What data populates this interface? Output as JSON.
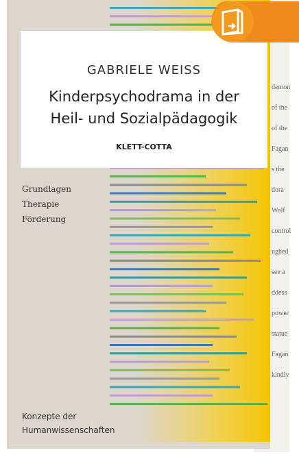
{
  "cover": {
    "author": "GABRIELE WEISS",
    "title_lines": [
      "Kinderpsychodrama in der",
      "Heil- und Sozialpädagogik"
    ],
    "publisher": "KLETT-COTTA",
    "topics": [
      "Grundlagen",
      "Therapie",
      "Förderung"
    ],
    "series_lines": [
      "Konzepte der",
      "Humanwissenschaften"
    ]
  },
  "back_page_fragments": [
    "demon",
    "of the",
    "of the",
    "Fagan",
    "s the",
    "dora",
    "Wolf",
    "control",
    "ughed",
    "see a",
    "ddess",
    "power",
    "statue",
    "Fagan",
    "kindly"
  ]
}
